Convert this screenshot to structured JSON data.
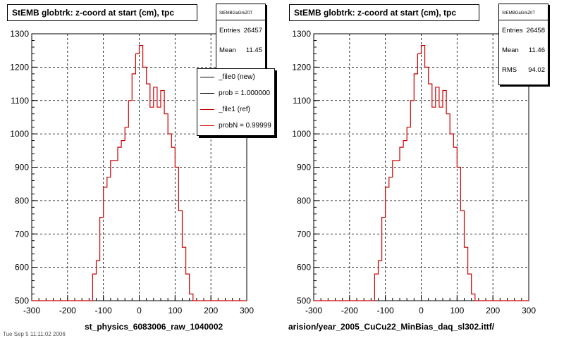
{
  "canvas": {
    "background": "#ffffff",
    "frame_color": "#000000",
    "grid_color": "#000000"
  },
  "footer_text": "Tue Sep 5 11:11:02 2006",
  "legend": {
    "entries": [
      {
        "label": "_file0 (new)",
        "color": "#000000"
      },
      {
        "label": "prob = 1.000000",
        "color": "#000000"
      },
      {
        "label": "_file1 (ref)",
        "color": "#cc0000"
      },
      {
        "label": "probN = 0.99999",
        "color": "#cc0000"
      }
    ]
  },
  "chart_data": [
    {
      "type": "histogram",
      "title": "StEMB globtrk: z-coord at start (cm), tpc",
      "xlabel": "st_physics_6083006_raw_1040002",
      "ylabel": "",
      "xlim": [
        -300,
        300
      ],
      "ylim": [
        500,
        1300
      ],
      "xticks": [
        -300,
        -200,
        -100,
        0,
        100,
        200,
        300
      ],
      "yticks": [
        500,
        600,
        700,
        800,
        900,
        1000,
        1100,
        1200,
        1300
      ],
      "xtick_labels": [
        "-300",
        "-200",
        "-100",
        "0",
        "100",
        "200",
        "300"
      ],
      "ytick_labels": [
        "500",
        "600",
        "700",
        "800",
        "900",
        "1000",
        "1100",
        "1200",
        "1300"
      ],
      "grid": true,
      "stats": {
        "name": "StEMBGaGrkZ0T",
        "entries_label": "Entries",
        "entries": "26457",
        "mean_label": "Mean",
        "mean": "11.45"
      },
      "series": [
        {
          "name": "_file1 (ref)",
          "color": "#cc0000",
          "bin_edges": [
            -300,
            -130,
            -120,
            -110,
            -100,
            -90,
            -80,
            -70,
            -60,
            -50,
            -40,
            -30,
            -20,
            -10,
            0,
            10,
            20,
            30,
            40,
            50,
            60,
            70,
            80,
            90,
            100,
            110,
            120,
            130,
            140,
            150,
            160,
            170,
            180,
            300
          ],
          "values": [
            500,
            580,
            620,
            750,
            840,
            870,
            920,
            920,
            960,
            980,
            1020,
            1100,
            1180,
            1240,
            1265,
            1200,
            1150,
            1080,
            1140,
            1080,
            1130,
            1060,
            1000,
            960,
            900,
            770,
            660,
            580,
            520,
            500,
            500,
            500,
            500
          ]
        }
      ]
    },
    {
      "type": "histogram",
      "title": "StEMB globtrk: z-coord at start (cm), tpc",
      "xlabel": "arision/year_2005_CuCu22_MinBias_daq_sl302.ittf/",
      "ylabel": "",
      "xlim": [
        -300,
        300
      ],
      "ylim": [
        500,
        1300
      ],
      "xticks": [
        -300,
        -200,
        -100,
        0,
        100,
        200,
        300
      ],
      "yticks": [
        500,
        600,
        700,
        800,
        900,
        1000,
        1100,
        1200,
        1300
      ],
      "xtick_labels": [
        "-300",
        "-200",
        "-100",
        "0",
        "100",
        "200",
        "300"
      ],
      "ytick_labels": [
        "500",
        "600",
        "700",
        "800",
        "900",
        "1000",
        "1100",
        "1200",
        "1300"
      ],
      "grid": true,
      "stats": {
        "name": "StEMBGaGrkZ0T",
        "entries_label": "Entries",
        "entries": "26458",
        "mean_label": "Mean",
        "mean": "11.46",
        "rms_label": "RMS",
        "rms": "94.02"
      },
      "series": [
        {
          "name": "_file1 (ref)",
          "color": "#cc0000",
          "bin_edges": [
            -300,
            -130,
            -120,
            -110,
            -100,
            -90,
            -80,
            -70,
            -60,
            -50,
            -40,
            -30,
            -20,
            -10,
            0,
            10,
            20,
            30,
            40,
            50,
            60,
            70,
            80,
            90,
            100,
            110,
            120,
            130,
            140,
            150,
            160,
            170,
            180,
            300
          ],
          "values": [
            500,
            580,
            620,
            750,
            840,
            870,
            920,
            920,
            960,
            980,
            1020,
            1100,
            1180,
            1240,
            1265,
            1200,
            1150,
            1080,
            1140,
            1080,
            1130,
            1060,
            1000,
            960,
            900,
            770,
            660,
            580,
            520,
            500,
            500,
            500,
            500
          ]
        }
      ]
    }
  ]
}
